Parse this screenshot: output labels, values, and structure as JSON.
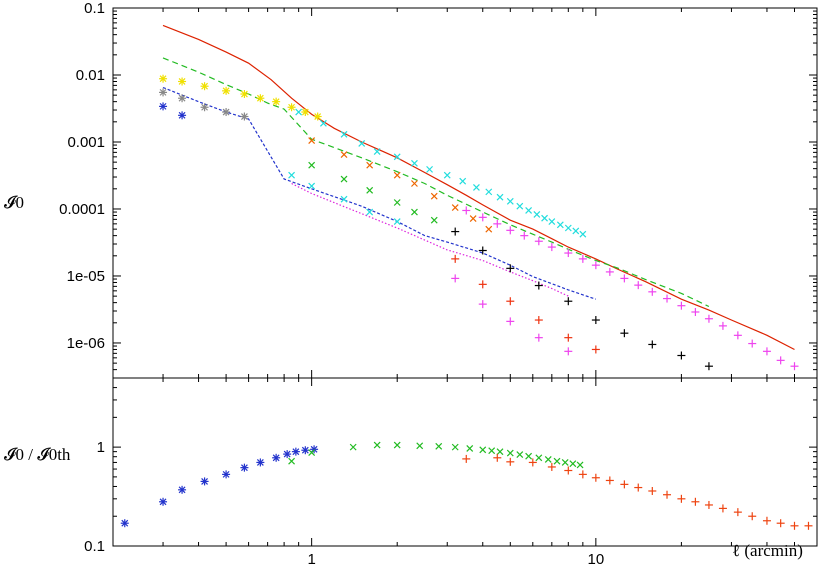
{
  "chart_data": [
    {
      "type": "line",
      "panel": "top",
      "title": "",
      "xlabel": "",
      "ylabel": "𝓘0",
      "xscale": "log",
      "yscale": "log",
      "xlim": [
        0.2,
        60
      ],
      "ylim": [
        3e-07,
        0.1
      ],
      "grid": false,
      "y_tick_labels": [
        "0.1",
        "0.01",
        "0.001",
        "0.0001",
        "1e-05",
        "1e-06"
      ],
      "y_tick_values": [
        0.1,
        0.01,
        0.001,
        0.0001,
        1e-05,
        1e-06
      ],
      "series": [
        {
          "kind": "line",
          "style": "solid",
          "color": "#dd2200",
          "x": [
            0.3,
            0.4,
            0.5,
            0.6,
            0.72,
            0.85,
            1.0,
            1.2,
            1.5,
            2.0,
            2.5,
            3.0,
            3.5,
            4.0,
            5.0,
            6.0,
            7.0,
            8.0,
            10,
            12,
            15,
            20,
            25,
            30,
            40,
            50
          ],
          "y": [
            0.055,
            0.034,
            0.022,
            0.015,
            0.0085,
            0.0045,
            0.0026,
            0.0016,
            0.001,
            0.00058,
            0.00035,
            0.00023,
            0.00016,
            0.000115,
            6.8e-05,
            5e-05,
            3.6e-05,
            2.7e-05,
            1.8e-05,
            1.25e-05,
            8.2e-06,
            4.5e-06,
            3.1e-06,
            2.2e-06,
            1.3e-06,
            8e-07
          ]
        },
        {
          "kind": "line",
          "style": "dashed",
          "color": "#22bb22",
          "x": [
            0.3,
            0.4,
            0.5,
            0.6,
            0.7,
            0.8,
            1.0,
            1.5,
            2.0,
            2.5,
            3.0,
            4.0,
            5.0,
            6.0,
            7.0,
            8.0,
            10,
            12,
            15,
            20,
            25
          ],
          "y": [
            0.018,
            0.011,
            0.0072,
            0.0052,
            0.0038,
            0.0031,
            0.0011,
            0.00058,
            0.00036,
            0.00024,
            0.00016,
            9e-05,
            5.8e-05,
            4.2e-05,
            3.2e-05,
            2.5e-05,
            1.7e-05,
            1.3e-05,
            8.8e-06,
            5.5e-06,
            3.5e-06
          ]
        },
        {
          "kind": "line",
          "style": "dotted-dense",
          "color": "#2233cc",
          "x": [
            0.3,
            0.4,
            0.5,
            0.6,
            0.8,
            1.0,
            1.5,
            2.0,
            2.5,
            3.0,
            4.0,
            5.0,
            6.0,
            8.0,
            10
          ],
          "y": [
            0.0065,
            0.004,
            0.0028,
            0.0022,
            0.00028,
            0.0002,
            0.00011,
            6.5e-05,
            4e-05,
            3.2e-05,
            2.2e-05,
            1.45e-05,
            9.8e-06,
            6.2e-06,
            4.5e-06
          ]
        },
        {
          "kind": "line",
          "style": "dotted",
          "color": "#dd22dd",
          "x": [
            0.85,
            1.0,
            1.5,
            2.0,
            3.0,
            4.0,
            5.0,
            6.0,
            7.0,
            8.0
          ],
          "y": [
            0.00024,
            0.00017,
            8.5e-05,
            5.2e-05,
            2.45e-05,
            1.7e-05,
            1.15e-05,
            8.5e-06,
            6.5e-06,
            5e-06
          ]
        },
        {
          "kind": "points",
          "marker": "asterisk",
          "color": "#f0e000",
          "x": [
            0.3,
            0.35,
            0.42,
            0.5,
            0.58,
            0.66,
            0.75,
            0.85,
            0.95,
            1.05
          ],
          "y": [
            0.0088,
            0.008,
            0.0068,
            0.0058,
            0.0052,
            0.0045,
            0.004,
            0.0033,
            0.0028,
            0.0024
          ]
        },
        {
          "kind": "points",
          "marker": "asterisk",
          "color": "#888888",
          "x": [
            0.3,
            0.35,
            0.42,
            0.5,
            0.58
          ],
          "y": [
            0.0055,
            0.0045,
            0.0033,
            0.0028,
            0.0024
          ]
        },
        {
          "kind": "points",
          "marker": "asterisk",
          "color": "#2233cc",
          "x": [
            0.3,
            0.35
          ],
          "y": [
            0.0034,
            0.0025
          ]
        },
        {
          "kind": "points",
          "marker": "cross",
          "color": "#22dddd",
          "x": [
            0.9,
            1.1,
            1.3,
            1.5,
            1.7,
            2.0,
            2.3,
            2.6,
            3.0,
            3.4,
            3.8,
            4.2,
            4.6,
            5.0,
            5.4,
            5.8,
            6.2,
            6.6,
            7.0,
            7.5,
            8.0,
            8.5,
            9.0
          ],
          "y": [
            0.0028,
            0.0019,
            0.0013,
            0.00095,
            0.00072,
            0.0006,
            0.00048,
            0.00039,
            0.00032,
            0.00026,
            0.00021,
            0.00018,
            0.00015,
            0.00013,
            0.00011,
            9.5e-05,
            8.3e-05,
            7.3e-05,
            6.5e-05,
            5.8e-05,
            5.2e-05,
            4.7e-05,
            4.2e-05
          ]
        },
        {
          "kind": "points",
          "marker": "cross",
          "color": "#ee6600",
          "x": [
            1.0,
            1.3,
            1.6,
            2.0,
            2.3,
            2.7,
            3.2,
            3.7,
            4.2
          ],
          "y": [
            0.00105,
            0.00065,
            0.00045,
            0.00032,
            0.00024,
            0.000155,
            0.000105,
            7.2e-05,
            5e-05
          ]
        },
        {
          "kind": "points",
          "marker": "cross",
          "color": "#22bb22",
          "x": [
            1.0,
            1.3,
            1.6,
            2.0,
            2.3,
            2.7
          ],
          "y": [
            0.00045,
            0.00028,
            0.00019,
            0.000125,
            9e-05,
            6.8e-05
          ]
        },
        {
          "kind": "points",
          "marker": "cross",
          "color": "#22dddd",
          "x": [
            0.85,
            1.0,
            1.3,
            1.6,
            2.0
          ],
          "y": [
            0.00032,
            0.00022,
            0.00014,
            9e-05,
            6.5e-05
          ]
        },
        {
          "kind": "points",
          "marker": "plus",
          "color": "#ee44ee",
          "x": [
            3.5,
            4.0,
            4.5,
            5.0,
            5.6,
            6.3,
            7.0,
            8.0,
            9.0,
            10,
            11.2,
            12.6,
            14.1,
            15.8,
            17.8,
            20,
            22.4,
            25,
            28,
            31.6,
            35.5,
            40,
            44.7,
            50
          ],
          "y": [
            9.5e-05,
            7.5e-05,
            6e-05,
            4.8e-05,
            4e-05,
            3.3e-05,
            2.7e-05,
            2.2e-05,
            1.8e-05,
            1.45e-05,
            1.15e-05,
            9.2e-06,
            7.3e-06,
            5.8e-06,
            4.6e-06,
            3.6e-06,
            2.9e-06,
            2.3e-06,
            1.8e-06,
            1.3e-06,
            9.8e-07,
            7.5e-07,
            5.5e-07,
            4.5e-07
          ]
        },
        {
          "kind": "points",
          "marker": "plus",
          "color": "#000000",
          "x": [
            3.2,
            4.0,
            5.0,
            6.3,
            8.0,
            10,
            12.6,
            15.8,
            20,
            25
          ],
          "y": [
            4.6e-05,
            2.4e-05,
            1.3e-05,
            7.2e-06,
            4.2e-06,
            2.2e-06,
            1.4e-06,
            9.5e-07,
            6.5e-07,
            4.5e-07
          ]
        },
        {
          "kind": "points",
          "marker": "plus",
          "color": "#ee3311",
          "x": [
            3.2,
            4.0,
            5.0,
            6.3,
            8.0,
            10
          ],
          "y": [
            1.8e-05,
            7.5e-06,
            4.2e-06,
            2.2e-06,
            1.2e-06,
            8e-07
          ]
        },
        {
          "kind": "points",
          "marker": "plus",
          "color": "#ee44ee",
          "x": [
            3.2,
            4.0,
            5.0,
            6.3,
            8.0
          ],
          "y": [
            9.2e-06,
            3.8e-06,
            2.1e-06,
            1.2e-06,
            7.5e-07
          ]
        }
      ]
    },
    {
      "type": "scatter",
      "panel": "bottom",
      "title": "",
      "xlabel": "ℓ (arcmin)",
      "ylabel": "𝓘0 / 𝓘0th",
      "xscale": "log",
      "yscale": "log",
      "xlim": [
        0.2,
        60
      ],
      "ylim": [
        0.1,
        5
      ],
      "grid": false,
      "x_tick_labels": [
        "1",
        "10"
      ],
      "x_tick_values": [
        1,
        10
      ],
      "y_tick_labels": [
        "1",
        "0.1"
      ],
      "y_tick_values": [
        1,
        0.1
      ],
      "series": [
        {
          "marker": "asterisk",
          "color": "#2233cc",
          "x": [
            0.22,
            0.3,
            0.35,
            0.42,
            0.5,
            0.58,
            0.66,
            0.75,
            0.82,
            0.88,
            0.95,
            1.02
          ],
          "y": [
            0.17,
            0.28,
            0.37,
            0.45,
            0.53,
            0.62,
            0.7,
            0.78,
            0.85,
            0.9,
            0.93,
            0.95
          ]
        },
        {
          "marker": "cross",
          "color": "#22bb22",
          "x": [
            0.85,
            1.0,
            1.4,
            1.7,
            2.0,
            2.4,
            2.8,
            3.2,
            3.6,
            4.0,
            4.3,
            4.6,
            5.0,
            5.4,
            5.8,
            6.3,
            6.8,
            7.3,
            7.8,
            8.3,
            8.8
          ],
          "y": [
            0.72,
            0.88,
            1.0,
            1.05,
            1.05,
            1.03,
            1.02,
            1.0,
            0.97,
            0.94,
            0.92,
            0.9,
            0.87,
            0.84,
            0.81,
            0.78,
            0.75,
            0.72,
            0.7,
            0.68,
            0.66
          ]
        },
        {
          "marker": "plus",
          "color": "#ee4411",
          "x": [
            3.5,
            4.5,
            5.0,
            6.0,
            7.0,
            8.0,
            9.0,
            10,
            11.2,
            12.6,
            14.1,
            15.8,
            17.8,
            20,
            22.4,
            25,
            28,
            31.6,
            35.5,
            40,
            44.7,
            50,
            56
          ],
          "y": [
            0.76,
            0.78,
            0.71,
            0.7,
            0.63,
            0.58,
            0.53,
            0.49,
            0.46,
            0.42,
            0.39,
            0.36,
            0.33,
            0.3,
            0.28,
            0.26,
            0.24,
            0.22,
            0.2,
            0.18,
            0.17,
            0.16,
            0.16
          ]
        }
      ]
    }
  ]
}
